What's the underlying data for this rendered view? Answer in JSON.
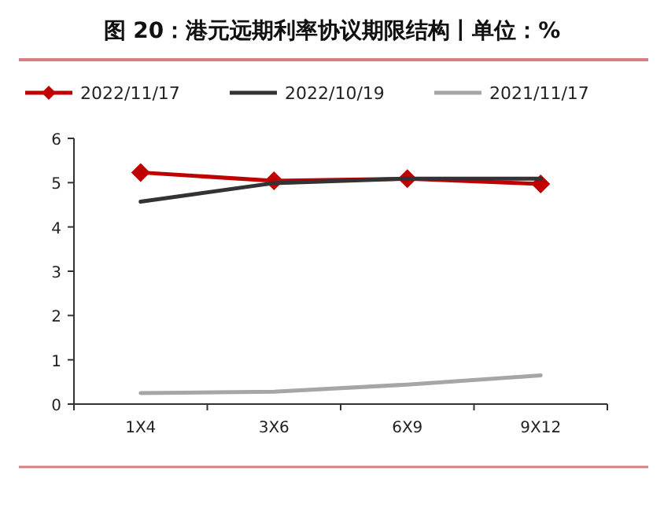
{
  "chart_data": {
    "type": "line",
    "title": "图 20：港元远期利率协议期限结构丨单位：%",
    "categories": [
      "1X4",
      "3X6",
      "6X9",
      "9X12"
    ],
    "series": [
      {
        "name": "2022/11/17",
        "color": "#c00000",
        "values": [
          5.23,
          5.04,
          5.09,
          4.97
        ],
        "marker": "diamond"
      },
      {
        "name": "2022/10/19",
        "color": "#333333",
        "values": [
          4.57,
          4.99,
          5.09,
          5.09
        ]
      },
      {
        "name": "2021/11/17",
        "color": "#a6a6a6",
        "values": [
          0.25,
          0.28,
          0.44,
          0.65
        ]
      }
    ],
    "ylim": [
      0,
      6
    ],
    "yticks": [
      0,
      1,
      2,
      3,
      4,
      5,
      6
    ],
    "grid": false,
    "legend": "top"
  }
}
